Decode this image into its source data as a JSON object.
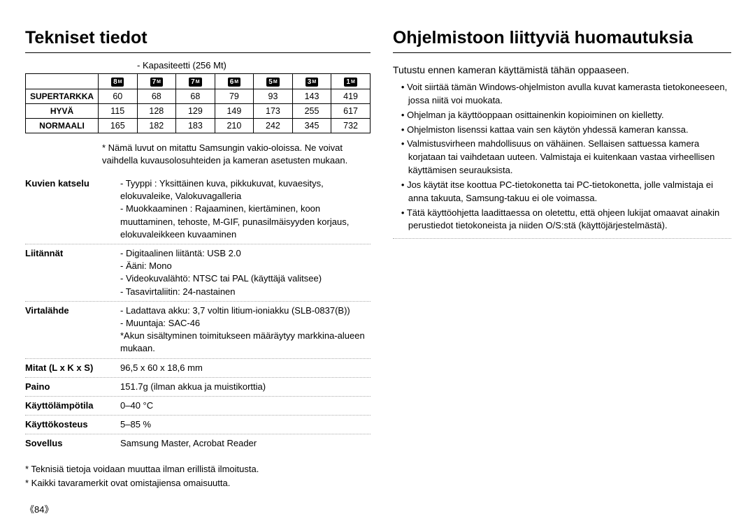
{
  "left": {
    "title": "Tekniset tiedot",
    "capacity_label": "- Kapasiteetti (256 Mt)",
    "resolutions": [
      "8",
      "7",
      "7",
      "6",
      "5",
      "3",
      "1"
    ],
    "rows": [
      {
        "name": "SUPERTARKKA",
        "vals": [
          "60",
          "68",
          "68",
          "79",
          "93",
          "143",
          "419"
        ]
      },
      {
        "name": "HYVÄ",
        "vals": [
          "115",
          "128",
          "129",
          "149",
          "173",
          "255",
          "617"
        ]
      },
      {
        "name": "NORMAALI",
        "vals": [
          "165",
          "182",
          "183",
          "210",
          "242",
          "345",
          "732"
        ]
      }
    ],
    "cap_note": "* Nämä luvut on mitattu Samsungin vakio-oloissa. Ne voivat vaihdella kuvausolosuhteiden ja kameran asetusten mukaan.",
    "specs": [
      {
        "label": "Kuvien katselu",
        "value": "- Tyyppi : Yksittäinen kuva, pikkukuvat, kuvaesitys, elokuvaleike, Valokuvagalleria\n- Muokkaaminen : Rajaaminen, kiertäminen, koon muuttaminen, tehoste, M-GIF, punasilmäisyyden korjaus, elokuvaleikkeen kuvaaminen"
      },
      {
        "label": "Liitännät",
        "value": "- Digitaalinen liitäntä: USB 2.0\n- Ääni: Mono\n- Videokuvalähtö: NTSC tai PAL (käyttäjä valitsee)\n- Tasavirtaliitin: 24-nastainen"
      },
      {
        "label": "Virtalähde",
        "value": "- Ladattava akku: 3,7 voltin litium-ioniakku (SLB-0837(B))\n- Muuntaja: SAC-46\n*Akun sisältyminen toimitukseen määräytyy markkina-alueen mukaan."
      },
      {
        "label": "Mitat (L x K x S)",
        "value": "96,5 x 60 x 18,6 mm"
      },
      {
        "label": "Paino",
        "value": "151.7g (ilman akkua ja muistikorttia)"
      },
      {
        "label": "Käyttölämpötila",
        "value": "0–40 °C"
      },
      {
        "label": "Käyttökosteus",
        "value": "5–85 %"
      },
      {
        "label": "Sovellus",
        "value": "Samsung Master, Acrobat Reader"
      }
    ],
    "footnote1": "* Teknisiä tietoja voidaan muuttaa ilman erillistä ilmoitusta.",
    "footnote2": "* Kaikki tavaramerkit ovat omistajiensa omaisuutta.",
    "page_num": "《84》"
  },
  "right": {
    "title": "Ohjelmistoon liittyviä huomautuksia",
    "intro": "Tutustu ennen kameran käyttämistä tähän oppaaseen.",
    "notes": [
      "Voit siirtää tämän Windows-ohjelmiston avulla kuvat kamerasta tietokoneeseen, jossa niitä voi muokata.",
      "Ohjelman ja käyttöoppaan osittainenkin kopioiminen on kielletty.",
      "Ohjelmiston lisenssi kattaa vain sen käytön yhdessä kameran kanssa.",
      "Valmistusvirheen mahdollisuus on vähäinen. Sellaisen sattuessa kamera korjataan tai vaihdetaan uuteen. Valmistaja ei kuitenkaan vastaa virheellisen käyttämisen seurauksista.",
      "Jos käytät itse koottua PC-tietokonetta tai PC-tietokonetta, jolle valmistaja ei anna takuuta, Samsung-takuu ei ole voimassa.",
      "Tätä käyttöohjetta laadittaessa on oletettu, että ohjeen lukijat omaavat ainakin perustiedot tietokoneista ja niiden O/S:stä (käyttöjärjestelmästä)."
    ]
  }
}
